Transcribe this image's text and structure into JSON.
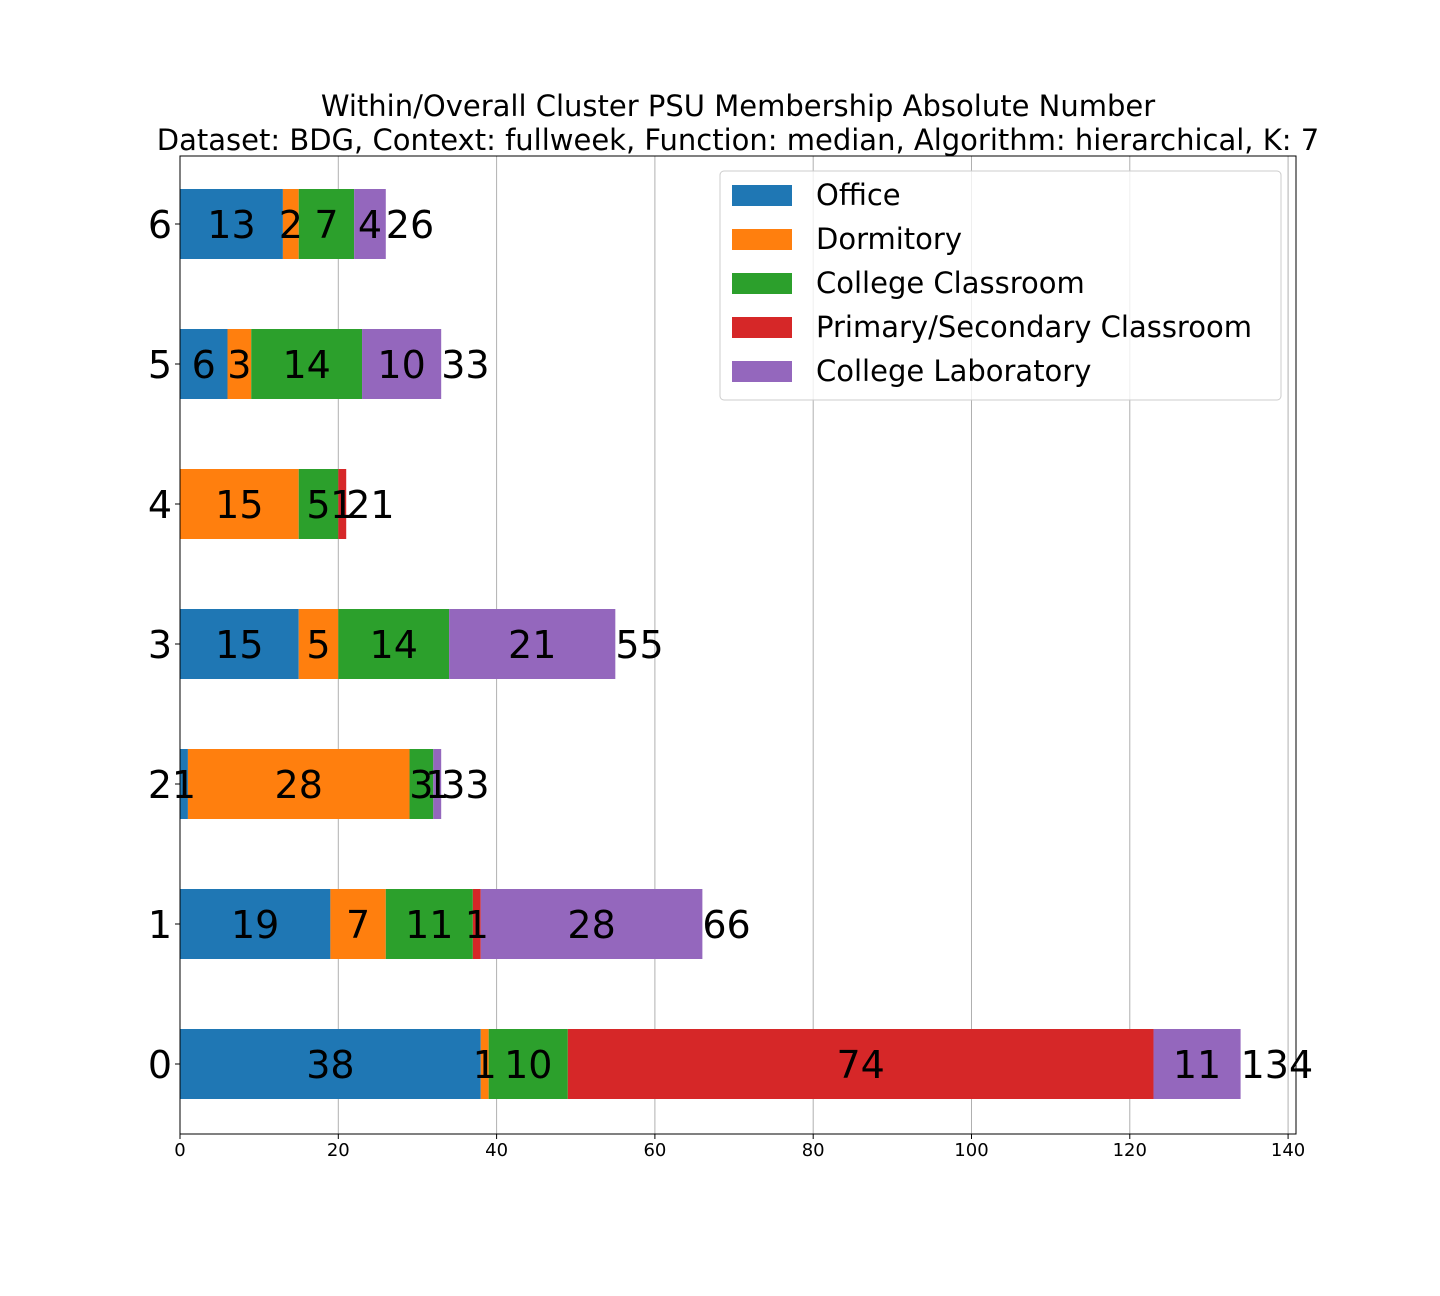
{
  "chart_data": {
    "type": "bar",
    "orientation": "horizontal",
    "stacked": true,
    "title": "Within/Overall Cluster PSU Membership Absolute Number",
    "subtitle": "Dataset: BDG, Context: fullweek, Function: median, Algorithm: hierarchical, K: 7",
    "xlabel": "",
    "ylabel": "",
    "xlim": [
      0,
      141
    ],
    "x_ticks": [
      0,
      20,
      40,
      60,
      80,
      100,
      120,
      140
    ],
    "x_tick_labels": [
      "0",
      "20",
      "40",
      "60",
      "80",
      "100",
      "120",
      "140"
    ],
    "grid": "x",
    "legend_position": "top-right",
    "categories": [
      "0",
      "1",
      "2",
      "3",
      "4",
      "5",
      "6"
    ],
    "series": [
      {
        "name": "Office",
        "color": "#1f77b4",
        "values": [
          38,
          19,
          1,
          15,
          0,
          6,
          13
        ],
        "labels": [
          "38",
          "19",
          "1",
          "15",
          "",
          "6",
          "13"
        ]
      },
      {
        "name": "Dormitory",
        "color": "#ff7f0e",
        "values": [
          1,
          7,
          28,
          5,
          15,
          3,
          2
        ],
        "labels": [
          "1",
          "7",
          "28",
          "5",
          "15",
          "3",
          "2"
        ]
      },
      {
        "name": "College Classroom",
        "color": "#2ca02c",
        "values": [
          10,
          11,
          3,
          14,
          5,
          14,
          7
        ],
        "labels": [
          "10",
          "11",
          "3",
          "14",
          "5",
          "14",
          "7"
        ]
      },
      {
        "name": "Primary/Secondary Classroom",
        "color": "#d62728",
        "values": [
          74,
          1,
          0,
          0,
          1,
          0,
          0
        ],
        "labels": [
          "74",
          "1",
          "",
          "",
          "1",
          "",
          ""
        ]
      },
      {
        "name": "College Laboratory",
        "color": "#9467bd",
        "values": [
          11,
          28,
          1,
          21,
          0,
          10,
          4
        ],
        "labels": [
          "11",
          "28",
          "1",
          "21",
          "",
          "10",
          "4"
        ]
      }
    ],
    "totals": [
      134,
      66,
      33,
      55,
      21,
      33,
      26
    ],
    "total_labels": [
      "134",
      "66",
      "33",
      "55",
      "21",
      "33",
      "26"
    ]
  }
}
